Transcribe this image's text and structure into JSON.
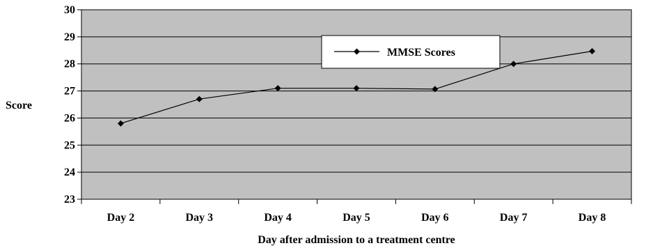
{
  "chart_data": {
    "type": "line",
    "title": "",
    "xlabel": "Day after admission to a treatment centre",
    "ylabel": "Score",
    "categories": [
      "Day 2",
      "Day 3",
      "Day 4",
      "Day 5",
      "Day 6",
      "Day 7",
      "Day 8"
    ],
    "series": [
      {
        "name": "MMSE Scores",
        "values": [
          25.8,
          26.7,
          27.1,
          27.1,
          27.07,
          28.0,
          28.47
        ]
      }
    ],
    "ylim": [
      23,
      30
    ],
    "yticks": [
      "23",
      "24",
      "25",
      "26",
      "27",
      "28",
      "29",
      "30"
    ],
    "grid": "horizontal",
    "legend_position": "top-center",
    "colors": {
      "plot_background": "#c0c0c0",
      "line": "#000000",
      "marker": "#000000",
      "gridline": "#000000"
    },
    "marker": "diamond-icon"
  }
}
